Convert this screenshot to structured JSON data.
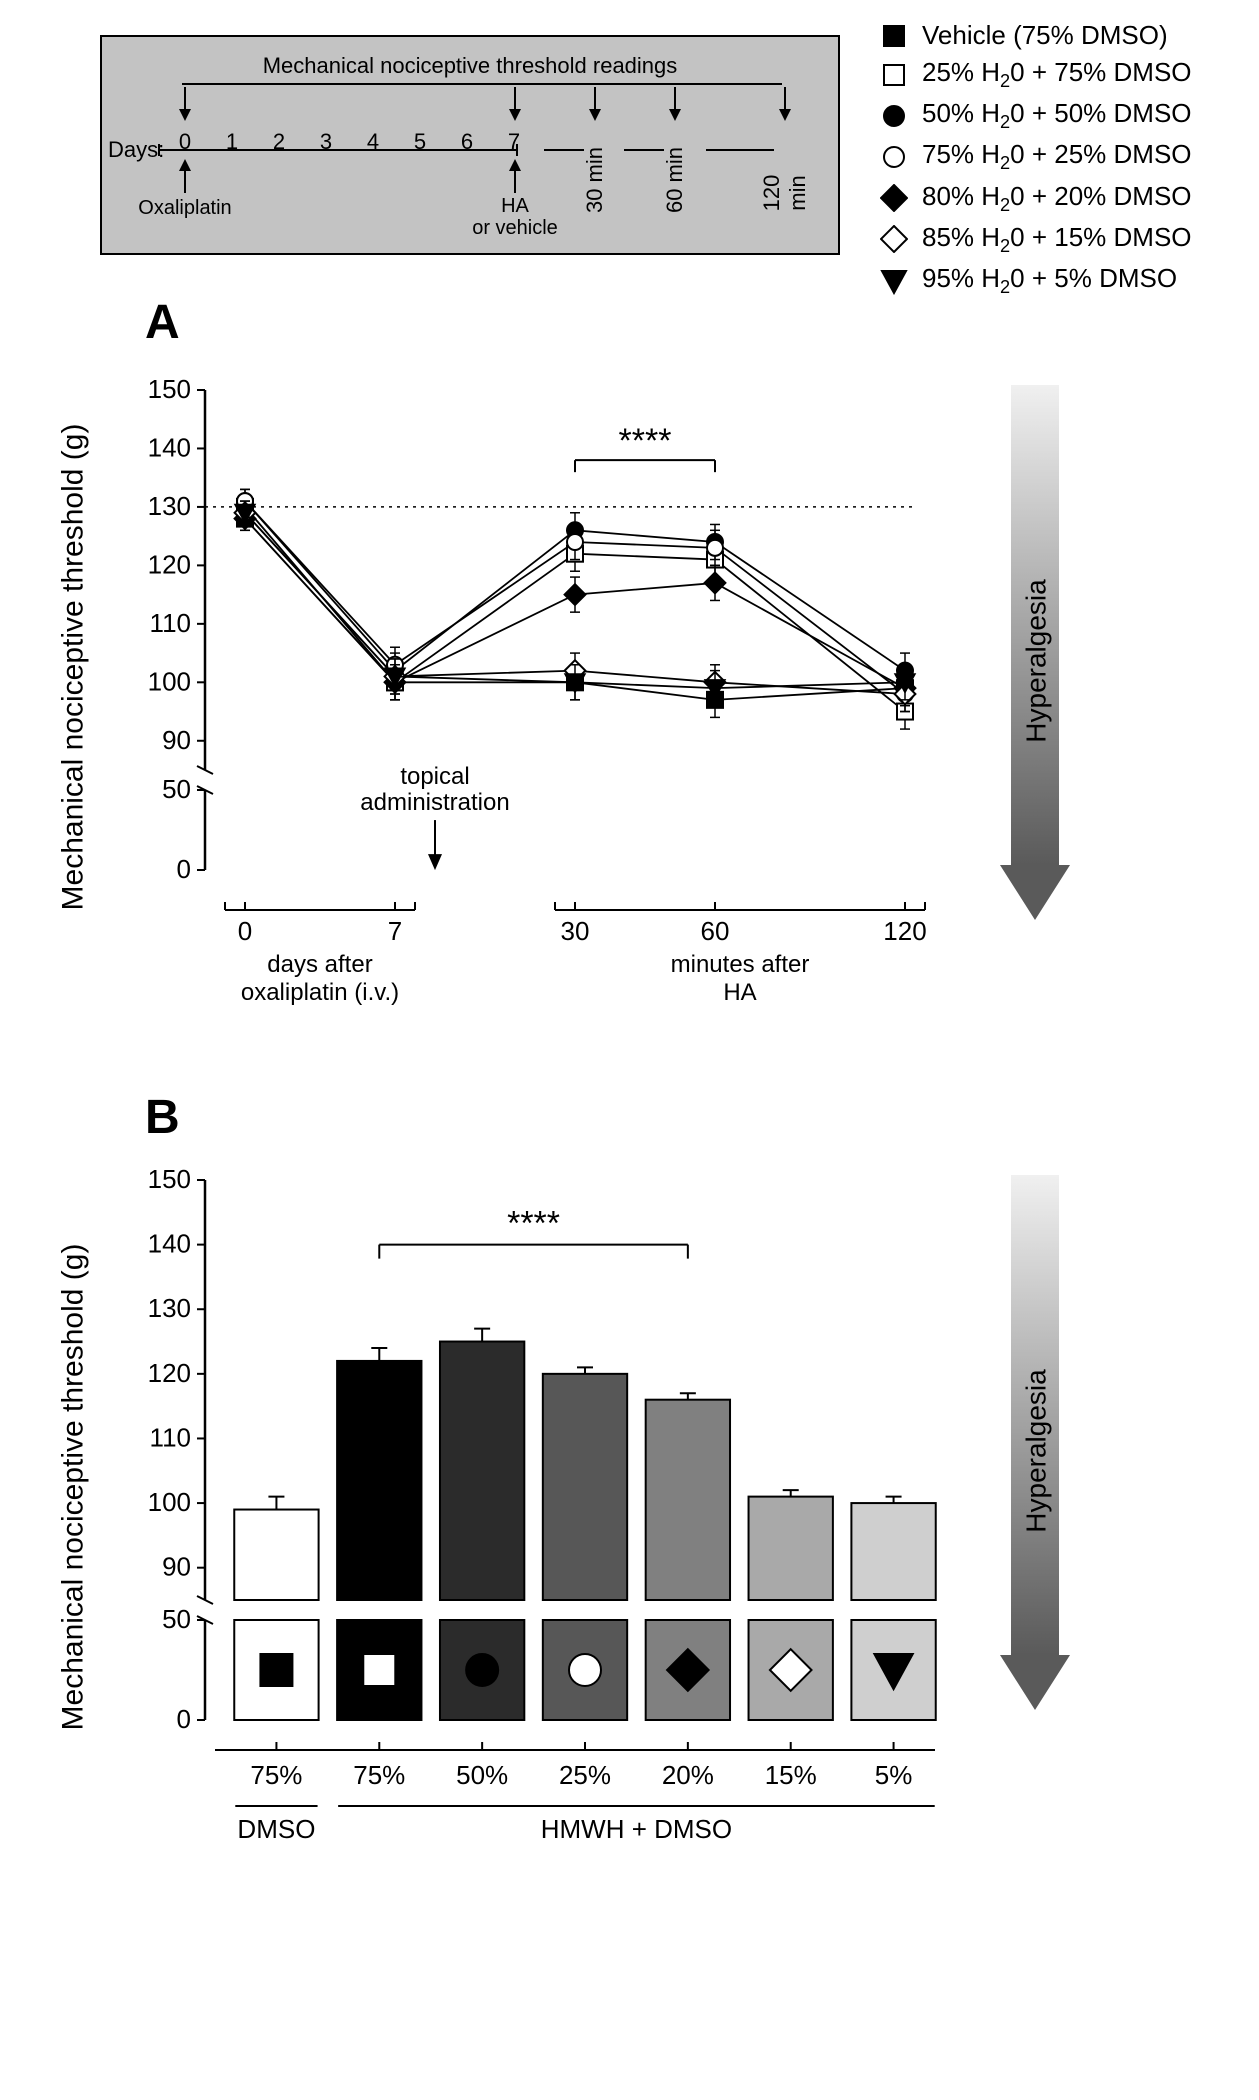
{
  "schematic": {
    "title": "Mechanical nociceptive threshold readings",
    "days_label": "Days:",
    "days": [
      "0",
      "1",
      "2",
      "3",
      "4",
      "5",
      "6",
      "7"
    ],
    "minute_ticks": [
      "30 min",
      "60 min",
      "120 min"
    ],
    "bottom_labels": {
      "oxaliplatin": "Oxaliplatin",
      "ha": "HA\nor vehicle"
    },
    "box_fill": "#c3c3c3",
    "box_stroke": "#000000"
  },
  "legend": {
    "items": [
      {
        "label": "Vehicle (75% DMSO)",
        "shape": "square",
        "fill": "#000000",
        "stroke": "#000000"
      },
      {
        "label": "25% H₂0 + 75% DMSO",
        "shape": "square",
        "fill": "#ffffff",
        "stroke": "#000000"
      },
      {
        "label": "50% H₂0 + 50% DMSO",
        "shape": "circle",
        "fill": "#000000",
        "stroke": "#000000"
      },
      {
        "label": "75% H₂0 + 25% DMSO",
        "shape": "circle",
        "fill": "#ffffff",
        "stroke": "#000000"
      },
      {
        "label": "80% H₂0 + 20% DMSO",
        "shape": "diamond",
        "fill": "#000000",
        "stroke": "#000000"
      },
      {
        "label": "85% H₂0 + 15% DMSO",
        "shape": "diamond",
        "fill": "#ffffff",
        "stroke": "#000000"
      },
      {
        "label": "95% H₂0 + 5% DMSO",
        "shape": "triangle-down",
        "fill": "#000000",
        "stroke": "#000000"
      }
    ],
    "label_fontsize": 26
  },
  "panelA": {
    "letter": "A",
    "ylabel": "Mechanical nociceptive threshold (g)",
    "ylabel_fontsize": 30,
    "ylim": [
      0,
      150
    ],
    "y_break": [
      60,
      85
    ],
    "yticks_upper": [
      90,
      100,
      110,
      120,
      130,
      140,
      150
    ],
    "yticks_lower": [
      0,
      50
    ],
    "x_categories": [
      "0",
      "7",
      "30",
      "60",
      "120"
    ],
    "x_group_left_label": "days after\noxaliplatin (i.v.)",
    "x_group_right_label": "minutes after\nHA",
    "topical_label": "topical\nadministration",
    "baseline_ref": 130,
    "baseline_style": "dotted",
    "series": [
      {
        "key": "vehicle",
        "values": [
          128,
          100,
          100,
          97,
          99
        ],
        "err": [
          2,
          3,
          3,
          3,
          3
        ],
        "shape": "square",
        "fill": "#000"
      },
      {
        "key": "dmso75",
        "values": [
          130,
          100,
          122,
          121,
          95
        ],
        "err": [
          2,
          3,
          3,
          3,
          3
        ],
        "shape": "square",
        "fill": "#fff"
      },
      {
        "key": "dmso50",
        "values": [
          131,
          102,
          126,
          124,
          102
        ],
        "err": [
          2,
          3,
          3,
          3,
          3
        ],
        "shape": "circle",
        "fill": "#000"
      },
      {
        "key": "dmso25",
        "values": [
          131,
          103,
          124,
          123,
          98
        ],
        "err": [
          2,
          3,
          3,
          3,
          3
        ],
        "shape": "circle",
        "fill": "#fff"
      },
      {
        "key": "dmso20",
        "values": [
          128,
          100,
          115,
          117,
          99
        ],
        "err": [
          2,
          3,
          3,
          3,
          3
        ],
        "shape": "diamond",
        "fill": "#000"
      },
      {
        "key": "dmso15",
        "values": [
          129,
          101,
          102,
          100,
          98
        ],
        "err": [
          2,
          3,
          3,
          3,
          3
        ],
        "shape": "diamond",
        "fill": "#fff"
      },
      {
        "key": "dmso5",
        "values": [
          129,
          101,
          100,
          99,
          100
        ],
        "err": [
          2,
          3,
          3,
          3,
          3
        ],
        "shape": "triangle-down",
        "fill": "#000"
      }
    ],
    "significance": {
      "stars": "****",
      "between_x": [
        "30",
        "60"
      ]
    },
    "line_color": "#000000",
    "marker_stroke": "#000000",
    "axis_color": "#000000",
    "gradient_label": "Hyperalgesia"
  },
  "panelB": {
    "letter": "B",
    "ylabel": "Mechanical nociceptive threshold (g)",
    "ylabel_fontsize": 30,
    "ylim": [
      0,
      150
    ],
    "y_break": [
      60,
      85
    ],
    "yticks_upper": [
      90,
      100,
      110,
      120,
      130,
      140,
      150
    ],
    "yticks_lower": [
      0,
      50
    ],
    "categories": [
      "75%",
      "75%",
      "50%",
      "25%",
      "20%",
      "15%",
      "5%"
    ],
    "bars": [
      {
        "value": 99,
        "err": 2,
        "fill": "#ffffff",
        "marker_shape": "square",
        "marker_fill": "#000000",
        "marker_bg": "#ffffff"
      },
      {
        "value": 122,
        "err": 2,
        "fill": "#000000",
        "marker_shape": "square",
        "marker_fill": "#ffffff",
        "marker_bg": "#000000"
      },
      {
        "value": 125,
        "err": 2,
        "fill": "#2b2b2b",
        "marker_shape": "circle",
        "marker_fill": "#000000",
        "marker_bg": "#2b2b2b"
      },
      {
        "value": 120,
        "err": 1,
        "fill": "#575757",
        "marker_shape": "circle",
        "marker_fill": "#ffffff",
        "marker_bg": "#575757"
      },
      {
        "value": 116,
        "err": 1,
        "fill": "#808080",
        "marker_shape": "diamond",
        "marker_fill": "#000000",
        "marker_bg": "#808080"
      },
      {
        "value": 101,
        "err": 1,
        "fill": "#a9a9a9",
        "marker_shape": "diamond",
        "marker_fill": "#ffffff",
        "marker_bg": "#a9a9a9"
      },
      {
        "value": 100,
        "err": 1,
        "fill": "#cfcfcf",
        "marker_shape": "triangle-down",
        "marker_fill": "#000000",
        "marker_bg": "#cfcfcf"
      }
    ],
    "bar_stroke": "#000000",
    "bar_width_ratio": 0.82,
    "x_group_left": "DMSO",
    "x_group_right": "HMWH + DMSO",
    "significance": {
      "stars": "****",
      "from_idx": 1,
      "to_idx": 4
    },
    "gradient_label": "Hyperalgesia"
  }
}
